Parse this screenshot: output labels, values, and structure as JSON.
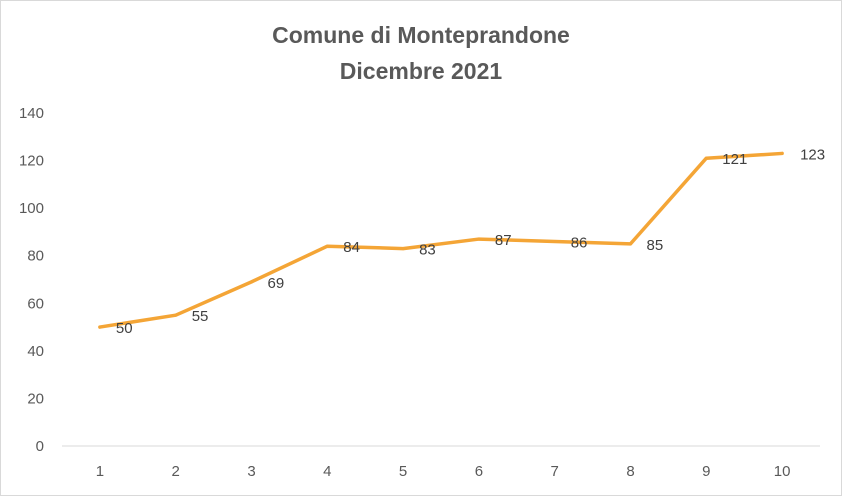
{
  "chart_data": {
    "type": "line",
    "title": "Comune di Monteprandone",
    "subtitle": "Dicembre 2021",
    "xlabel": "",
    "ylabel": "",
    "categories": [
      "1",
      "2",
      "3",
      "4",
      "5",
      "6",
      "7",
      "8",
      "9",
      "10"
    ],
    "series": [
      {
        "values": [
          50,
          55,
          69,
          84,
          83,
          87,
          86,
          85,
          121,
          123
        ],
        "color": "#F4A536"
      }
    ],
    "data_labels": [
      "50",
      "55",
      "69",
      "84",
      "83",
      "87",
      "86",
      "85",
      "121",
      "123"
    ],
    "ylim": [
      0,
      140
    ],
    "yticks": [
      "0",
      "20",
      "40",
      "60",
      "80",
      "100",
      "120",
      "140"
    ],
    "grid": false,
    "legend": "none"
  }
}
